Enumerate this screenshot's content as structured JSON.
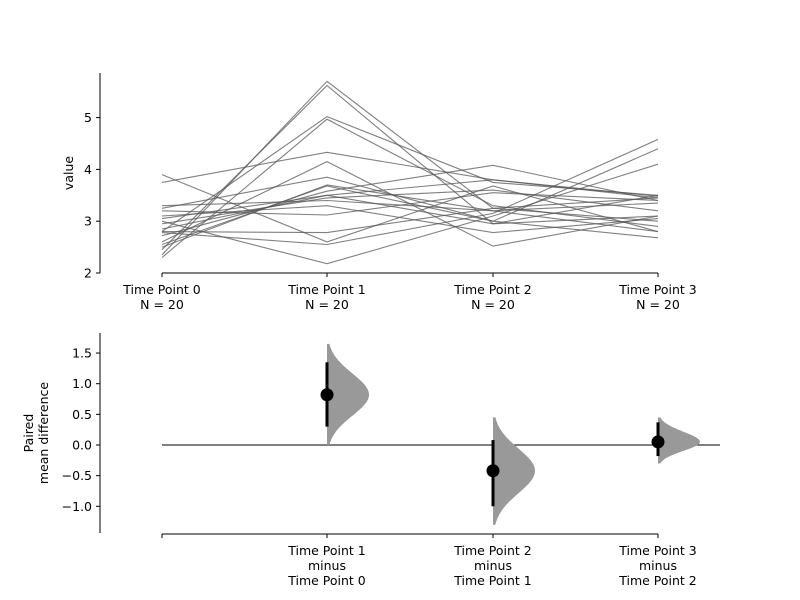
{
  "chart_data": [
    {
      "type": "line",
      "title": "",
      "ylabel": "value",
      "ylim": [
        2,
        5.9
      ],
      "yticks": [
        2,
        3,
        4,
        5
      ],
      "categories": [
        "Time Point 0",
        "Time Point 1",
        "Time Point 2",
        "Time Point 3"
      ],
      "group_n": [
        "N = 20",
        "N = 20",
        "N = 20",
        "N = 20"
      ],
      "line_color": "#555555",
      "series": [
        {
          "values": [
            2.35,
            5.7,
            3.25,
            3.45
          ]
        },
        {
          "values": [
            2.45,
            5.62,
            2.95,
            3.5
          ]
        },
        {
          "values": [
            2.8,
            5.02,
            3.75,
            3.5
          ]
        },
        {
          "values": [
            2.3,
            4.97,
            3.3,
            2.9
          ]
        },
        {
          "values": [
            3.75,
            4.33,
            3.8,
            3.45
          ]
        },
        {
          "values": [
            2.6,
            4.15,
            2.52,
            3.1
          ]
        },
        {
          "values": [
            3.25,
            3.85,
            3.0,
            4.4
          ]
        },
        {
          "values": [
            2.5,
            3.7,
            3.2,
            2.8
          ]
        },
        {
          "values": [
            3.05,
            3.5,
            3.8,
            3.48
          ]
        },
        {
          "values": [
            2.95,
            3.45,
            3.6,
            3.2
          ]
        },
        {
          "values": [
            3.3,
            3.4,
            3.2,
            3.35
          ]
        },
        {
          "values": [
            3.2,
            3.12,
            3.55,
            3.4
          ]
        },
        {
          "values": [
            2.8,
            2.78,
            3.25,
            3.0
          ]
        },
        {
          "values": [
            3.9,
            2.6,
            3.68,
            2.8
          ]
        },
        {
          "values": [
            2.78,
            2.55,
            3.15,
            4.58
          ]
        },
        {
          "values": [
            3.0,
            2.18,
            3.1,
            4.1
          ]
        },
        {
          "values": [
            3.1,
            3.3,
            2.78,
            3.05
          ]
        },
        {
          "values": [
            2.72,
            3.58,
            4.08,
            3.4
          ]
        },
        {
          "values": [
            2.55,
            3.68,
            3.0,
            2.68
          ]
        },
        {
          "values": [
            2.85,
            3.5,
            2.95,
            3.1
          ]
        }
      ]
    },
    {
      "type": "scatter",
      "title": "",
      "ylabel_lines": [
        "Paired",
        "mean difference"
      ],
      "ylim": [
        -1.45,
        1.8
      ],
      "yticks": [
        -1.0,
        -0.5,
        0.0,
        0.5,
        1.0,
        1.5
      ],
      "ytick_labels": [
        "−1.0",
        "−0.5",
        "0.0",
        "0.5",
        "1.0",
        "1.5"
      ],
      "reference_line": 0.0,
      "dist_color": "#999999",
      "comparisons": [
        {
          "label_lines": [
            "Time Point 1",
            "minus",
            "Time Point 0"
          ],
          "mean": 0.82,
          "ci": [
            0.3,
            1.35
          ],
          "dist_min": 0.0,
          "dist_max": 1.65,
          "dist_peak": 0.82
        },
        {
          "label_lines": [
            "Time Point 2",
            "minus",
            "Time Point 1"
          ],
          "mean": -0.42,
          "ci": [
            -1.0,
            0.08
          ],
          "dist_min": -1.3,
          "dist_max": 0.45,
          "dist_peak": -0.42
        },
        {
          "label_lines": [
            "Time Point 3",
            "minus",
            "Time Point 2"
          ],
          "mean": 0.05,
          "ci": [
            -0.18,
            0.37
          ],
          "dist_min": -0.3,
          "dist_max": 0.45,
          "dist_peak": 0.05
        }
      ]
    }
  ]
}
